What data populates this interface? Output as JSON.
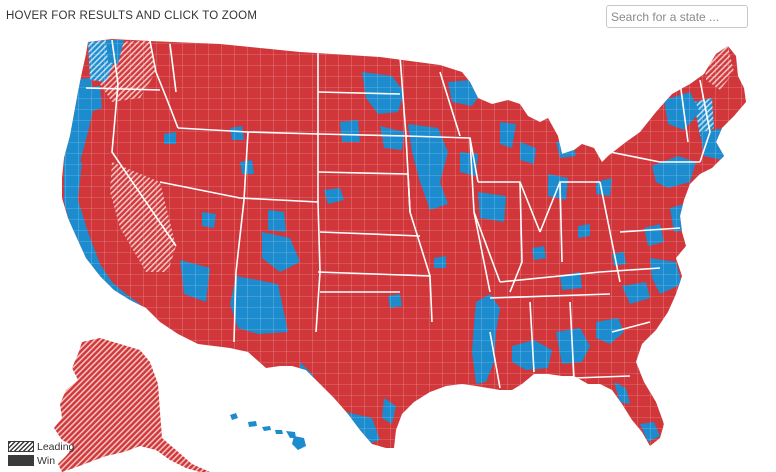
{
  "header": {
    "instruction": "HOVER FOR RESULTS AND CLICK TO ZOOM",
    "search_placeholder": "Search for a state ..."
  },
  "map": {
    "colors": {
      "red_win": "#d0363a",
      "red_leading": "#e58c87",
      "blue_win": "#1c8ccf",
      "blue_leading": "#7fbde2",
      "border": "#ffffff"
    }
  },
  "legend": {
    "leading_label": "Leading",
    "win_label": "Win"
  }
}
